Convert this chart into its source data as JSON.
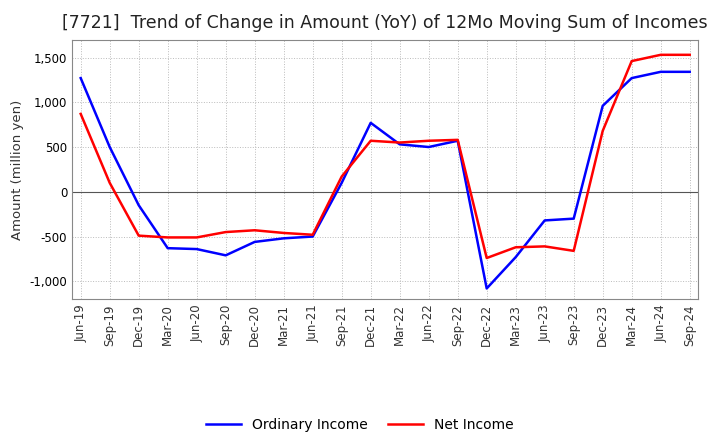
{
  "title": "[7721]  Trend of Change in Amount (YoY) of 12Mo Moving Sum of Incomes",
  "ylabel": "Amount (million yen)",
  "x_labels": [
    "Jun-19",
    "Sep-19",
    "Dec-19",
    "Mar-20",
    "Jun-20",
    "Sep-20",
    "Dec-20",
    "Mar-21",
    "Jun-21",
    "Sep-21",
    "Dec-21",
    "Mar-22",
    "Jun-22",
    "Sep-22",
    "Dec-22",
    "Mar-23",
    "Jun-23",
    "Sep-23",
    "Dec-23",
    "Mar-24",
    "Jun-24",
    "Sep-24"
  ],
  "ordinary_income": [
    1270,
    500,
    -150,
    -630,
    -640,
    -710,
    -560,
    -520,
    -500,
    100,
    770,
    530,
    500,
    570,
    -1080,
    -730,
    -320,
    -300,
    960,
    1270,
    1340,
    1340
  ],
  "net_income": [
    870,
    100,
    -490,
    -510,
    -510,
    -450,
    -430,
    -460,
    -480,
    170,
    570,
    550,
    570,
    580,
    -740,
    -620,
    -610,
    -660,
    680,
    1460,
    1530,
    1530
  ],
  "ordinary_income_color": "#0000ff",
  "net_income_color": "#ff0000",
  "line_width": 1.8,
  "ylim": [
    -1200,
    1700
  ],
  "yticks": [
    -1000,
    -500,
    0,
    500,
    1000,
    1500
  ],
  "grid_color": "#bbbbbb",
  "bg_color": "#f8f8f8",
  "title_fontsize": 12.5,
  "legend_fontsize": 10,
  "axis_fontsize": 8.5,
  "ylabel_fontsize": 9.5
}
